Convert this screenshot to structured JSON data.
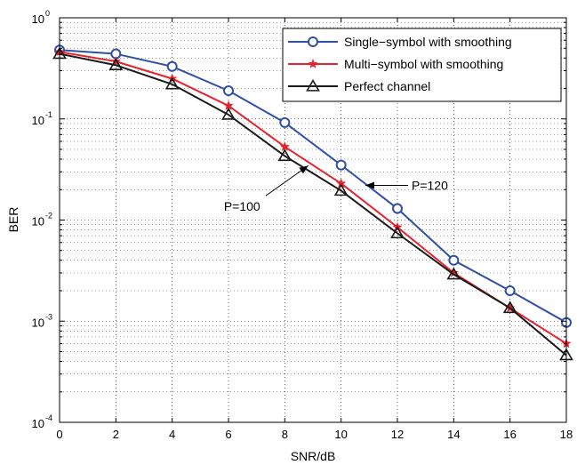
{
  "chart_data": {
    "type": "line",
    "title": "",
    "xlabel": "SNR/dB",
    "ylabel": "BER",
    "xlim": [
      0,
      18
    ],
    "ylim": [
      0.0001,
      1
    ],
    "y_scale": "log",
    "grid": true,
    "legend_position": "top-right",
    "x_ticks": [
      0,
      2,
      4,
      6,
      8,
      10,
      12,
      14,
      16,
      18
    ],
    "x_tick_labels": [
      "0",
      "2",
      "4",
      "6",
      "8",
      "10",
      "12",
      "14",
      "16",
      "18"
    ],
    "y_ticks": [
      {
        "value": 1,
        "mantissa": "10",
        "exp": "0"
      },
      {
        "value": 0.1,
        "mantissa": "10",
        "exp": "-1"
      },
      {
        "value": 0.01,
        "mantissa": "10",
        "exp": "-2"
      },
      {
        "value": 0.001,
        "mantissa": "10",
        "exp": "-3"
      },
      {
        "value": 0.0001,
        "mantissa": "10",
        "exp": "-4"
      }
    ],
    "x": [
      0,
      2,
      4,
      6,
      8,
      10,
      12,
      14,
      16,
      18
    ],
    "series": [
      {
        "name": "Single−symbol with smoothing",
        "color": "#2f4fa8",
        "marker": "circle",
        "values": [
          0.48,
          0.44,
          0.33,
          0.19,
          0.092,
          0.035,
          0.013,
          0.004,
          0.002,
          0.00097
        ]
      },
      {
        "name": "Multi−symbol with smoothing",
        "color": "#e8232e",
        "marker": "star",
        "values": [
          0.46,
          0.37,
          0.25,
          0.135,
          0.053,
          0.023,
          0.0085,
          0.003,
          0.00135,
          0.0006
        ]
      },
      {
        "name": "Perfect channel",
        "color": "#1a1a1a",
        "marker": "triangle",
        "values": [
          0.44,
          0.34,
          0.22,
          0.11,
          0.043,
          0.0195,
          0.0074,
          0.0029,
          0.00135,
          0.00046
        ]
      }
    ],
    "annotations": [
      {
        "text": "P=120",
        "arrow_to": {
          "x": 10.8,
          "y": 0.022
        }
      },
      {
        "text": "P=100",
        "arrow_to": {
          "x": 8.9,
          "y": 0.036
        }
      }
    ]
  }
}
